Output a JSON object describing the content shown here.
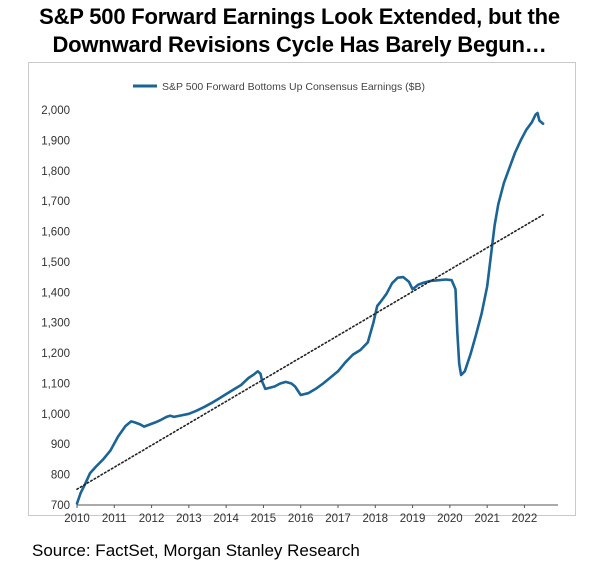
{
  "title": {
    "line1": "S&P 500 Forward Earnings Look Extended, but the",
    "line2": "Downward Revisions Cycle Has Barely Begun…"
  },
  "source": "Source: FactSet, Morgan Stanley Research",
  "colors": {
    "series": "#1a6496",
    "trend": "#222222",
    "axis": "#555555",
    "frame": "#c9c9c9"
  },
  "chart_data": {
    "type": "line",
    "legend_position": "top-center",
    "grid": false,
    "xlim": [
      2010,
      2022.9
    ],
    "ylim": [
      700,
      2000
    ],
    "xticks": [
      "2010",
      "2011",
      "2012",
      "2013",
      "2014",
      "2015",
      "2016",
      "2017",
      "2018",
      "2019",
      "2020",
      "2021",
      "2022"
    ],
    "yticks": [
      "700",
      "800",
      "900",
      "1,000",
      "1,100",
      "1,200",
      "1,300",
      "1,400",
      "1,500",
      "1,600",
      "1,700",
      "1,800",
      "1,900",
      "2,000"
    ],
    "series": [
      {
        "name": "S&P 500 Forward Bottoms Up Consensus Earnings ($B)",
        "style": "solid",
        "x": [
          2010.0,
          2010.1,
          2010.2,
          2010.35,
          2010.5,
          2010.7,
          2010.9,
          2011.1,
          2011.3,
          2011.45,
          2011.55,
          2011.7,
          2011.8,
          2011.95,
          2012.1,
          2012.25,
          2012.4,
          2012.5,
          2012.6,
          2012.8,
          2013.0,
          2013.2,
          2013.4,
          2013.6,
          2013.8,
          2014.0,
          2014.2,
          2014.4,
          2014.6,
          2014.75,
          2014.85,
          2014.92,
          2014.97,
          2015.05,
          2015.3,
          2015.45,
          2015.6,
          2015.75,
          2015.85,
          2016.0,
          2016.2,
          2016.4,
          2016.6,
          2016.8,
          2017.0,
          2017.2,
          2017.4,
          2017.6,
          2017.8,
          2017.95,
          2018.05,
          2018.15,
          2018.3,
          2018.45,
          2018.6,
          2018.75,
          2018.9,
          2019.0,
          2019.15,
          2019.3,
          2019.5,
          2019.7,
          2019.9,
          2020.05,
          2020.15,
          2020.2,
          2020.25,
          2020.3,
          2020.4,
          2020.55,
          2020.7,
          2020.85,
          2021.0,
          2021.1,
          2021.2,
          2021.3,
          2021.45,
          2021.6,
          2021.75,
          2021.9,
          2022.05,
          2022.2,
          2022.3,
          2022.35,
          2022.4,
          2022.5
        ],
        "y": [
          705,
          740,
          765,
          805,
          825,
          850,
          880,
          925,
          960,
          975,
          972,
          965,
          958,
          965,
          972,
          980,
          990,
          994,
          990,
          995,
          1000,
          1010,
          1022,
          1035,
          1050,
          1065,
          1080,
          1095,
          1118,
          1130,
          1140,
          1132,
          1105,
          1082,
          1090,
          1100,
          1105,
          1100,
          1090,
          1062,
          1068,
          1082,
          1100,
          1120,
          1140,
          1170,
          1195,
          1210,
          1235,
          1300,
          1355,
          1370,
          1395,
          1430,
          1448,
          1450,
          1435,
          1410,
          1425,
          1432,
          1438,
          1440,
          1442,
          1440,
          1410,
          1270,
          1165,
          1128,
          1140,
          1195,
          1260,
          1330,
          1420,
          1520,
          1620,
          1690,
          1760,
          1810,
          1860,
          1900,
          1935,
          1960,
          1985,
          1990,
          1965,
          1955
        ]
      },
      {
        "name": "",
        "style": "dotted",
        "x": [
          2010.0,
          2022.5
        ],
        "y": [
          752,
          1655
        ]
      }
    ]
  }
}
